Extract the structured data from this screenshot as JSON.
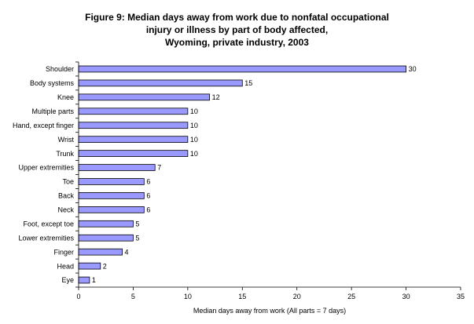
{
  "chart_data": {
    "type": "bar",
    "orientation": "horizontal",
    "title_lines": [
      "Figure 9: Median days away from work due to nonfatal occupational",
      "injury or illness by part of body affected,",
      "Wyoming, private industry, 2003"
    ],
    "categories": [
      "Shoulder",
      "Body systems",
      "Knee",
      "Multiple parts",
      "Hand, except finger",
      "Wrist",
      "Trunk",
      "Upper extremities",
      "Toe",
      "Back",
      "Neck",
      "Foot, except toe",
      "Lower extremities",
      "Finger",
      "Head",
      "Eye"
    ],
    "values": [
      30,
      15,
      12,
      10,
      10,
      10,
      10,
      7,
      6,
      6,
      6,
      5,
      5,
      4,
      2,
      1
    ],
    "xlabel": "Median days away from work (All parts = 7 days)",
    "ylabel": "",
    "xlim": [
      0,
      35
    ],
    "xticks": [
      0,
      5,
      10,
      15,
      20,
      25,
      30,
      35
    ],
    "grid": false,
    "legend": "none",
    "bar_color": "#9999ff",
    "bar_edge_color": "#000000"
  }
}
